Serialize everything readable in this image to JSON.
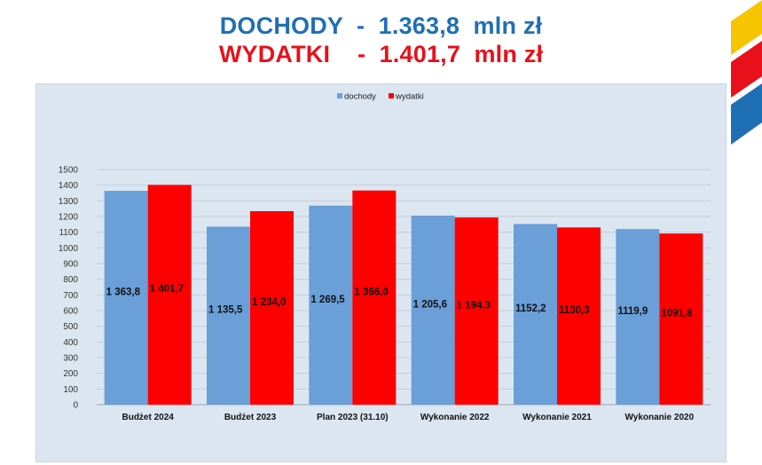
{
  "header": {
    "line1": "DOCHODY  -  1.363,8  mln zł",
    "line2": "WYDATKI    -  1.401,7  mln zł"
  },
  "colors": {
    "dochody": "#6a9fd8",
    "wydatki": "#fd0000",
    "line1": "#1f6fb5",
    "line2": "#e8101b",
    "logo_yellow": "#f6c400",
    "logo_red": "#e8101b",
    "logo_blue": "#1f6fb5"
  },
  "chart_data": {
    "type": "bar",
    "categories": [
      "Budżet 2024",
      "Budżet 2023",
      "Plan 2023 (31.10)",
      "Wykonanie 2022",
      "Wykonanie 2021",
      "Wykonanie 2020"
    ],
    "series": [
      {
        "name": "dochody",
        "values": [
          1363.8,
          1135.5,
          1269.5,
          1205.6,
          1152.2,
          1119.9
        ],
        "labels": [
          "1 363,8",
          "1 135,5",
          "1 269,5",
          "1 205,6",
          "1152,2",
          "1119,9"
        ]
      },
      {
        "name": "wydatki",
        "values": [
          1401.7,
          1234.0,
          1366.0,
          1194.3,
          1130.3,
          1091.8
        ],
        "labels": [
          "1 401,7",
          "1 234,0",
          "1 366,0",
          "1 194,3",
          "1130,3",
          "1091,8"
        ]
      }
    ],
    "yticks": [
      "0",
      "100",
      "200",
      "300",
      "400",
      "500",
      "600",
      "700",
      "800",
      "900",
      "1000",
      "1100",
      "1200",
      "1300",
      "1400",
      "1500"
    ],
    "ylim": [
      0,
      1500
    ],
    "grid": true,
    "legend": "top-center"
  }
}
